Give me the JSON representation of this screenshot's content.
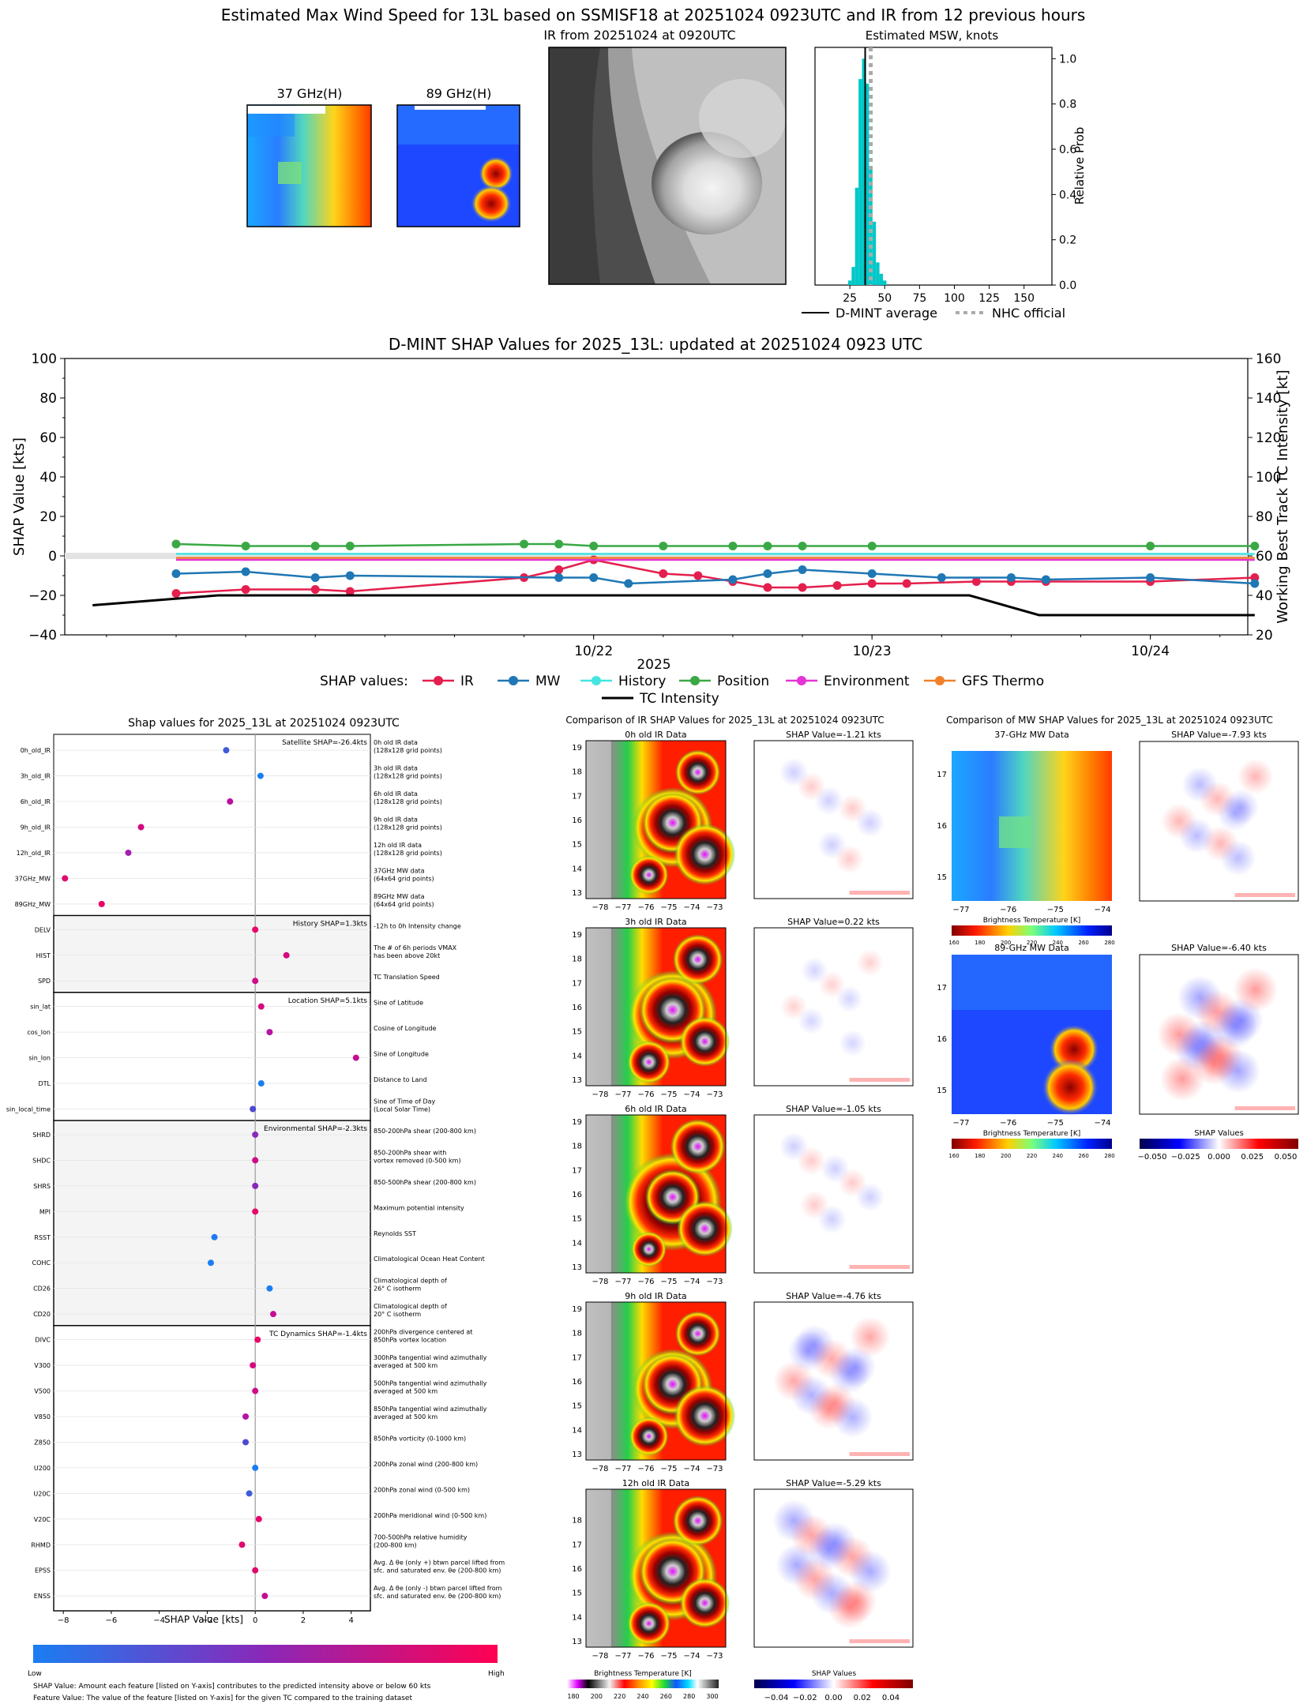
{
  "top": {
    "title": "Estimated Max Wind Speed for 13L based on SSMISF18 at 20251024 0923UTC and IR from 12 previous hours",
    "mw37_title": "37 GHz(H)",
    "mw89_title": "89 GHz(H)",
    "ir_title": "IR from 20251024 at 0920UTC",
    "hist_title": "Estimated MSW, knots",
    "hist_ylabel": "Relative Prob",
    "hist_xticks": [
      "25",
      "50",
      "75",
      "100",
      "125",
      "150"
    ],
    "hist_yticks": [
      "0.0",
      "0.2",
      "0.4",
      "0.6",
      "0.8",
      "1.0"
    ],
    "legend_dmint": "D-MINT average",
    "legend_nhc": "NHC official"
  },
  "shap_ts": {
    "title": "D-MINT SHAP Values for 2025_13L: updated at 20251024 0923 UTC",
    "ylabel_left": "SHAP Value [kts]",
    "ylabel_right": "Working Best Track TC Intensity [kt]",
    "xlabel": "2025",
    "legend_title": "SHAP values:",
    "legend_tc": "TC Intensity",
    "yticks_left": [
      "100",
      "80",
      "60",
      "40",
      "20",
      "0",
      "−20",
      "−40"
    ],
    "yticks_right": [
      "160",
      "140",
      "120",
      "100",
      "80",
      "60",
      "40",
      "20"
    ],
    "xticks": [
      "10/22",
      "10/23",
      "10/24"
    ]
  },
  "feat": {
    "title": "Shap values for 2025_13L at 20251024 0923UTC",
    "xlabel": "SHAP Value [kts]",
    "xticks": [
      "−8",
      "−6",
      "−4",
      "−2",
      "0",
      "2",
      "4"
    ],
    "group_labels": [
      "Satellite SHAP=-26.4kts",
      "History SHAP=1.3kts",
      "Location SHAP=5.1kts",
      "Environmental SHAP=-2.3kts",
      "TC Dynamics SHAP=-1.4kts"
    ],
    "colorbar_low": "Low",
    "colorbar_high": "High",
    "footnote1": "SHAP Value: Amount each feature [listed on Y-axis] contributes to the predicted intensity above or below 60 kts",
    "footnote2": "Feature Value: The value of the feature [listed on Y-axis] for the given TC compared to the training dataset"
  },
  "ircomp": {
    "title": "Comparison of IR SHAP Values for 2025_13L at 20251024 0923UTC",
    "panels": [
      {
        "title": "0h old IR Data",
        "shap": "SHAP Value=-1.21 kts"
      },
      {
        "title": "3h old IR Data",
        "shap": "SHAP Value=0.22 kts"
      },
      {
        "title": "6h old IR Data",
        "shap": "SHAP Value=-1.05 kts"
      },
      {
        "title": "9h old IR Data",
        "shap": "SHAP Value=-4.76 kts"
      },
      {
        "title": "12h old IR Data",
        "shap": "SHAP Value=-5.29 kts"
      }
    ],
    "xticks": [
      "−78",
      "−77",
      "−76",
      "−75",
      "−74",
      "−73"
    ],
    "yticks": [
      "19",
      "18",
      "17",
      "16",
      "15",
      "14",
      "13"
    ],
    "cbar_label": "Brightness Temperature [K]",
    "cbar_ticks": [
      "180",
      "200",
      "220",
      "240",
      "260",
      "280",
      "300"
    ],
    "shap_cbar_label": "SHAP Values",
    "shap_cbar_ticks": [
      "−0.04",
      "−0.02",
      "0.00",
      "0.02",
      "0.04"
    ]
  },
  "mwcomp": {
    "title": "Comparison of MW SHAP Values for 2025_13L at 20251024 0923UTC",
    "panels": [
      {
        "title": "37-GHz MW Data",
        "shap": "SHAP Value=-7.93 kts"
      },
      {
        "title": "89-GHz MW Data",
        "shap": "SHAP Value=-6.40 kts"
      }
    ],
    "xticks": [
      "−77",
      "−76",
      "−75",
      "−74"
    ],
    "yticks": [
      "17",
      "16",
      "15"
    ],
    "cbar_label": "Brightness Temperature [K]",
    "cbar_ticks": [
      "160",
      "180",
      "200",
      "220",
      "240",
      "260",
      "280"
    ],
    "shap_cbar_label": "SHAP Values",
    "shap_cbar_ticks": [
      "−0.050",
      "−0.025",
      "0.000",
      "0.025",
      "0.050"
    ]
  },
  "chart_data": [
    {
      "type": "bar",
      "title": "Estimated MSW, knots",
      "xlabel": "",
      "ylabel": "Relative Prob",
      "xlim": [
        0,
        170
      ],
      "ylim": [
        0,
        1.05
      ],
      "bins": [
        {
          "x": 25,
          "value": 0.02
        },
        {
          "x": 27.5,
          "value": 0.08
        },
        {
          "x": 30,
          "value": 0.43
        },
        {
          "x": 32.5,
          "value": 0.91
        },
        {
          "x": 35,
          "value": 1.0
        },
        {
          "x": 37.5,
          "value": 0.89
        },
        {
          "x": 40,
          "value": 0.52
        },
        {
          "x": 42.5,
          "value": 0.28
        },
        {
          "x": 45,
          "value": 0.1
        },
        {
          "x": 47.5,
          "value": 0.05
        },
        {
          "x": 50,
          "value": 0.02
        }
      ],
      "dmint_average": 36,
      "nhc_official": 40
    },
    {
      "type": "line",
      "title": "D-MINT SHAP Values for 2025_13L: updated at 20251024 0923 UTC",
      "xlabel": "2025",
      "ylabel": "SHAP Value [kts]",
      "y2label": "Working Best Track TC Intensity [kt]",
      "xlim": [
        20.1,
        24.35
      ],
      "ylim": [
        -40,
        100
      ],
      "y2lim": [
        20,
        160
      ],
      "x": [
        20.5,
        20.75,
        21.0,
        21.125,
        21.75,
        21.875,
        22.0,
        22.25,
        22.5,
        22.625,
        22.75,
        22.875,
        23.0,
        23.125,
        23.25,
        23.5,
        23.625,
        23.75,
        23.875,
        24.0,
        24.375
      ],
      "series": [
        {
          "name": "IR",
          "color": "#e41f4d",
          "x": [
            20.5,
            20.75,
            21.0,
            21.125,
            21.75,
            21.875,
            22.0,
            22.25,
            22.375,
            22.5,
            22.625,
            22.75,
            22.875,
            23.0,
            23.125,
            23.375,
            23.5,
            23.625,
            24.0,
            24.375
          ],
          "values": [
            -19,
            -17,
            -17,
            -18,
            -11,
            -7,
            -2,
            -9,
            -10,
            -13,
            -16,
            -16,
            -15,
            -14,
            -14,
            -13,
            -13,
            -13,
            -13,
            -11
          ]
        },
        {
          "name": "MW",
          "color": "#1f77b4",
          "x": [
            20.5,
            20.75,
            21.0,
            21.125,
            21.875,
            22.0,
            22.125,
            22.5,
            22.625,
            22.75,
            23.0,
            23.25,
            23.5,
            23.625,
            24.0,
            24.375
          ],
          "values": [
            -9,
            -8,
            -11,
            -10,
            -11,
            -11,
            -14,
            -12,
            -9,
            -7,
            -9,
            -11,
            -11,
            -12,
            -11,
            -14
          ]
        },
        {
          "name": "History",
          "color": "#43e6e0",
          "x": [
            20.5,
            21.0,
            22.0,
            22.5,
            23.0,
            23.5,
            24.0,
            24.375
          ],
          "values": [
            1,
            1,
            1,
            1,
            1,
            1,
            1,
            1
          ]
        },
        {
          "name": "Position",
          "color": "#3aa845",
          "x": [
            20.5,
            20.75,
            21.0,
            21.125,
            21.75,
            21.875,
            22.0,
            22.25,
            22.5,
            22.625,
            22.75,
            23.0,
            24.0,
            24.375
          ],
          "values": [
            6,
            5,
            5,
            5,
            6,
            6,
            5,
            5,
            5,
            5,
            5,
            5,
            5,
            5
          ]
        },
        {
          "name": "Environment",
          "color": "#e633d6",
          "x": [
            20.5,
            21.0,
            22.0,
            22.5,
            23.0,
            23.5,
            24.0,
            24.375
          ],
          "values": [
            -2,
            -2,
            -2,
            -2,
            -2,
            -2,
            -2,
            -2
          ]
        },
        {
          "name": "GFS Thermo",
          "color": "#f0812a",
          "x": [
            20.5,
            21.0,
            22.0,
            22.5,
            23.0,
            23.5,
            24.0,
            24.375
          ],
          "values": [
            -1,
            -1,
            -1,
            -1,
            -1,
            -1,
            -1,
            -1
          ]
        },
        {
          "name": "TC Intensity",
          "color": "#000000",
          "axis": "right",
          "x": [
            20.2,
            20.65,
            21.95,
            22.05,
            22.85,
            23.35,
            23.6,
            24.0,
            24.375
          ],
          "values": [
            35,
            40,
            40,
            40,
            40,
            40,
            30,
            30,
            30
          ]
        }
      ]
    },
    {
      "type": "scatter",
      "title": "Shap values for 2025_13L at 20251024 0923UTC",
      "xlabel": "SHAP Value [kts]",
      "xlim": [
        -8.4,
        4.8
      ],
      "features": [
        {
          "name": "0h_old_IR",
          "desc": "0h old IR data|(128x128 grid points)",
          "value": -1.21,
          "color": "#3f5bd9"
        },
        {
          "name": "3h_old_IR",
          "desc": "3h old IR data|(128x128 grid points)",
          "value": 0.22,
          "color": "#1a7ef2"
        },
        {
          "name": "6h_old_IR",
          "desc": "6h old IR data|(128x128 grid points)",
          "value": -1.05,
          "color": "#bb0fa0"
        },
        {
          "name": "9h_old_IR",
          "desc": "9h old IR data|(128x128 grid points)",
          "value": -4.76,
          "color": "#d6097f"
        },
        {
          "name": "12h_old_IR",
          "desc": "12h old IR data|(128x128 grid points)",
          "value": -5.29,
          "color": "#a41fae"
        },
        {
          "name": "37GHz_MW",
          "desc": "37GHz MW data|(64x64 grid points)",
          "value": -7.93,
          "color": "#e0096e"
        },
        {
          "name": "89GHz_MW",
          "desc": "89GHz MW data|(64x64 grid points)",
          "value": -6.4,
          "color": "#e70768"
        },
        {
          "name": "DELV",
          "desc": "-12h to 0h Intensity change",
          "value": 0.0,
          "color": "#e70768"
        },
        {
          "name": "HIST",
          "desc": "The # of 6h periods VMAX|has been above 20kt",
          "value": 1.3,
          "color": "#d6097f"
        },
        {
          "name": "SPD",
          "desc": "TC Translation Speed",
          "value": 0.0,
          "color": "#cf0b88"
        },
        {
          "name": "sin_lat",
          "desc": "Sine of Latitude",
          "value": 0.25,
          "color": "#d6097f"
        },
        {
          "name": "cos_lon",
          "desc": "Cosine of Longitude",
          "value": 0.6,
          "color": "#b414a5"
        },
        {
          "name": "sin_lon",
          "desc": "Sine of Longitude",
          "value": 4.2,
          "color": "#c40d93"
        },
        {
          "name": "DTL",
          "desc": "Distance to Land",
          "value": 0.25,
          "color": "#1a7ef2"
        },
        {
          "name": "sin_local_time",
          "desc": "Sine of Time of Day|(Local Solar Time)",
          "value": -0.1,
          "color": "#4b49d3"
        },
        {
          "name": "SHRD",
          "desc": "850-200hPa shear (200-800 km)",
          "value": 0.0,
          "color": "#8a28b8"
        },
        {
          "name": "SHDC",
          "desc": "850-200hPa shear with|vortex removed (0-500 km)",
          "value": 0.0,
          "color": "#cf0b88"
        },
        {
          "name": "SHRS",
          "desc": "850-500hPa shear (200-800 km)",
          "value": 0.0,
          "color": "#8a28b8"
        },
        {
          "name": "MPI",
          "desc": "Maximum potential intensity",
          "value": 0.0,
          "color": "#e70768"
        },
        {
          "name": "RSST",
          "desc": "Reynolds SST",
          "value": -1.7,
          "color": "#1f7af0"
        },
        {
          "name": "COHC",
          "desc": "Climatological Ocean Heat Content",
          "value": -1.85,
          "color": "#1a7ef2"
        },
        {
          "name": "CD26",
          "desc": "Climatological depth of|26° C isotherm",
          "value": 0.6,
          "color": "#1a7ef2"
        },
        {
          "name": "CD20",
          "desc": "Climatological depth of|20° C isotherm",
          "value": 0.75,
          "color": "#c40d93"
        },
        {
          "name": "DIVC",
          "desc": "200hPa divergence centered at|850hPa vortex location",
          "value": 0.1,
          "color": "#e70768"
        },
        {
          "name": "V300",
          "desc": "300hPa tangential wind azimuthally|averaged at 500 km",
          "value": -0.1,
          "color": "#d6097f"
        },
        {
          "name": "V500",
          "desc": "500hPa tangential wind azimuthally|averaged at 500 km",
          "value": 0.0,
          "color": "#cf0b88"
        },
        {
          "name": "V850",
          "desc": "850hPa tangential wind azimuthally|averaged at 500 km",
          "value": -0.4,
          "color": "#b414a5"
        },
        {
          "name": "Z850",
          "desc": "850hPa vorticity (0-1000 km)",
          "value": -0.4,
          "color": "#4b49d3"
        },
        {
          "name": "U200",
          "desc": "200hPa zonal wind (200-800 km)",
          "value": 0.0,
          "color": "#1a7ef2"
        },
        {
          "name": "U20C",
          "desc": "200hPa zonal wind (0-500 km)",
          "value": -0.25,
          "color": "#3f5bd9"
        },
        {
          "name": "V20C",
          "desc": "200hPa meridional wind (0-500 km)",
          "value": 0.15,
          "color": "#e70768"
        },
        {
          "name": "RHMD",
          "desc": "700-500hPa relative humidity|(200-800 km)",
          "value": -0.55,
          "color": "#e0096e"
        },
        {
          "name": "EPSS",
          "desc": "Avg. Δ θe (only +) btwn parcel lifted from|sfc. and saturated env. θe (200-800 km)",
          "value": 0.0,
          "color": "#e0096e"
        },
        {
          "name": "ENSS",
          "desc": "Avg. Δ θe (only -) btwn parcel lifted from|sfc. and saturated env. θe (200-800 km)",
          "value": 0.4,
          "color": "#c40d93"
        }
      ],
      "colors": {
        "low": "#1a7ef2",
        "mid": "#8a28b8",
        "high": "#ff0052"
      }
    }
  ]
}
